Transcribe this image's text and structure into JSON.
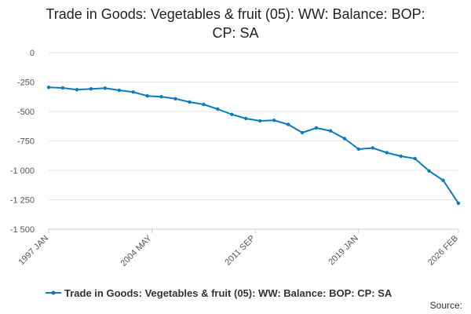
{
  "chart_data": {
    "type": "line",
    "title": "Trade in Goods: Vegetables & fruit (05): WW: Balance: BOP: CP: SA",
    "title_lines": [
      "Trade in Goods: Vegetables & fruit (05): WW: Balance: BOP:",
      "CP: SA"
    ],
    "xlabel": "",
    "ylabel": "",
    "ylim": [
      -1500,
      0
    ],
    "y_ticks": [
      0,
      -250,
      -500,
      -750,
      -1000,
      -1250,
      -1500
    ],
    "y_tick_labels": [
      "0",
      "-250",
      "-500",
      "-750",
      "-1 000",
      "-1 250",
      "-1 500"
    ],
    "x_ticks": [
      "1997 JAN",
      "2004 MAY",
      "2011 SEP",
      "2019 JAN",
      "2026 FEB"
    ],
    "grid": true,
    "legend_position": "bottom",
    "series": [
      {
        "name": "Trade in Goods: Vegetables & fruit (05): WW: Balance: BOP: CP: SA",
        "color": "#0a7bbd",
        "x": [
          "1997-01",
          "1998-01",
          "1999-01",
          "2000-01",
          "2001-01",
          "2002-01",
          "2003-01",
          "2004-01",
          "2005-01",
          "2006-01",
          "2007-01",
          "2008-01",
          "2009-01",
          "2010-01",
          "2011-01",
          "2012-01",
          "2013-01",
          "2014-01",
          "2015-01",
          "2016-01",
          "2017-01",
          "2018-01",
          "2019-01",
          "2020-01",
          "2021-01",
          "2022-01",
          "2023-01",
          "2024-01",
          "2025-01",
          "2026-02"
        ],
        "values": [
          -295,
          -300,
          -315,
          -308,
          -302,
          -320,
          -335,
          -368,
          -375,
          -392,
          -420,
          -440,
          -480,
          -525,
          -560,
          -580,
          -575,
          -610,
          -680,
          -640,
          -665,
          -730,
          -820,
          -810,
          -850,
          -880,
          -900,
          -1005,
          -1085,
          -1280
        ]
      }
    ]
  },
  "legend": {
    "label": "Trade in Goods: Vegetables & fruit (05): WW: Balance: BOP: CP: SA"
  },
  "source_label": "Source:"
}
